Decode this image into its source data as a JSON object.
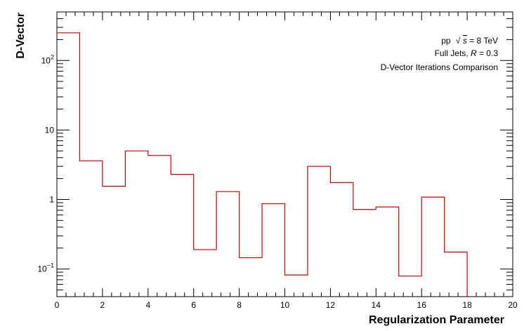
{
  "chart_data": {
    "type": "line",
    "style": "step-histogram",
    "title": "",
    "xlabel": "Regularization Parameter",
    "ylabel": "D-Vector",
    "xlim": [
      0,
      20
    ],
    "ylim": [
      0.04,
      500
    ],
    "yscale": "log",
    "x_ticks": [
      0,
      2,
      4,
      6,
      8,
      10,
      12,
      14,
      16,
      18,
      20
    ],
    "x_tick_labels": [
      "0",
      "2",
      "4",
      "6",
      "8",
      "10",
      "12",
      "14",
      "16",
      "18",
      "20"
    ],
    "y_ticks": [
      {
        "value": 0.1,
        "base": "10",
        "exp": "−1"
      },
      {
        "value": 1,
        "text": "1"
      },
      {
        "value": 10,
        "text": "10"
      },
      {
        "value": 100,
        "base": "10",
        "exp": "2"
      }
    ],
    "grid": false,
    "line_color": "#cc0000",
    "series": [
      {
        "bin_edges": [
          0,
          1,
          2,
          3,
          4,
          5,
          6,
          7,
          8,
          9,
          10,
          11,
          12,
          13,
          14,
          15,
          16,
          17,
          18
        ],
        "values": [
          250,
          3.6,
          1.55,
          5.0,
          4.3,
          2.3,
          0.19,
          1.3,
          0.145,
          0.87,
          0.082,
          3.0,
          1.75,
          0.72,
          0.78,
          0.079,
          1.08,
          0.175
        ]
      }
    ],
    "annotations": {
      "line1_prefix": "pp",
      "line1_sqrt": "√",
      "line1_s": "s",
      "line1_suffix": " = 8 TeV",
      "line2_prefix": "Full Jets, ",
      "line2_R": "R",
      "line2_suffix": " = 0.3",
      "line3": "D-Vector Iterations Comparison"
    }
  }
}
